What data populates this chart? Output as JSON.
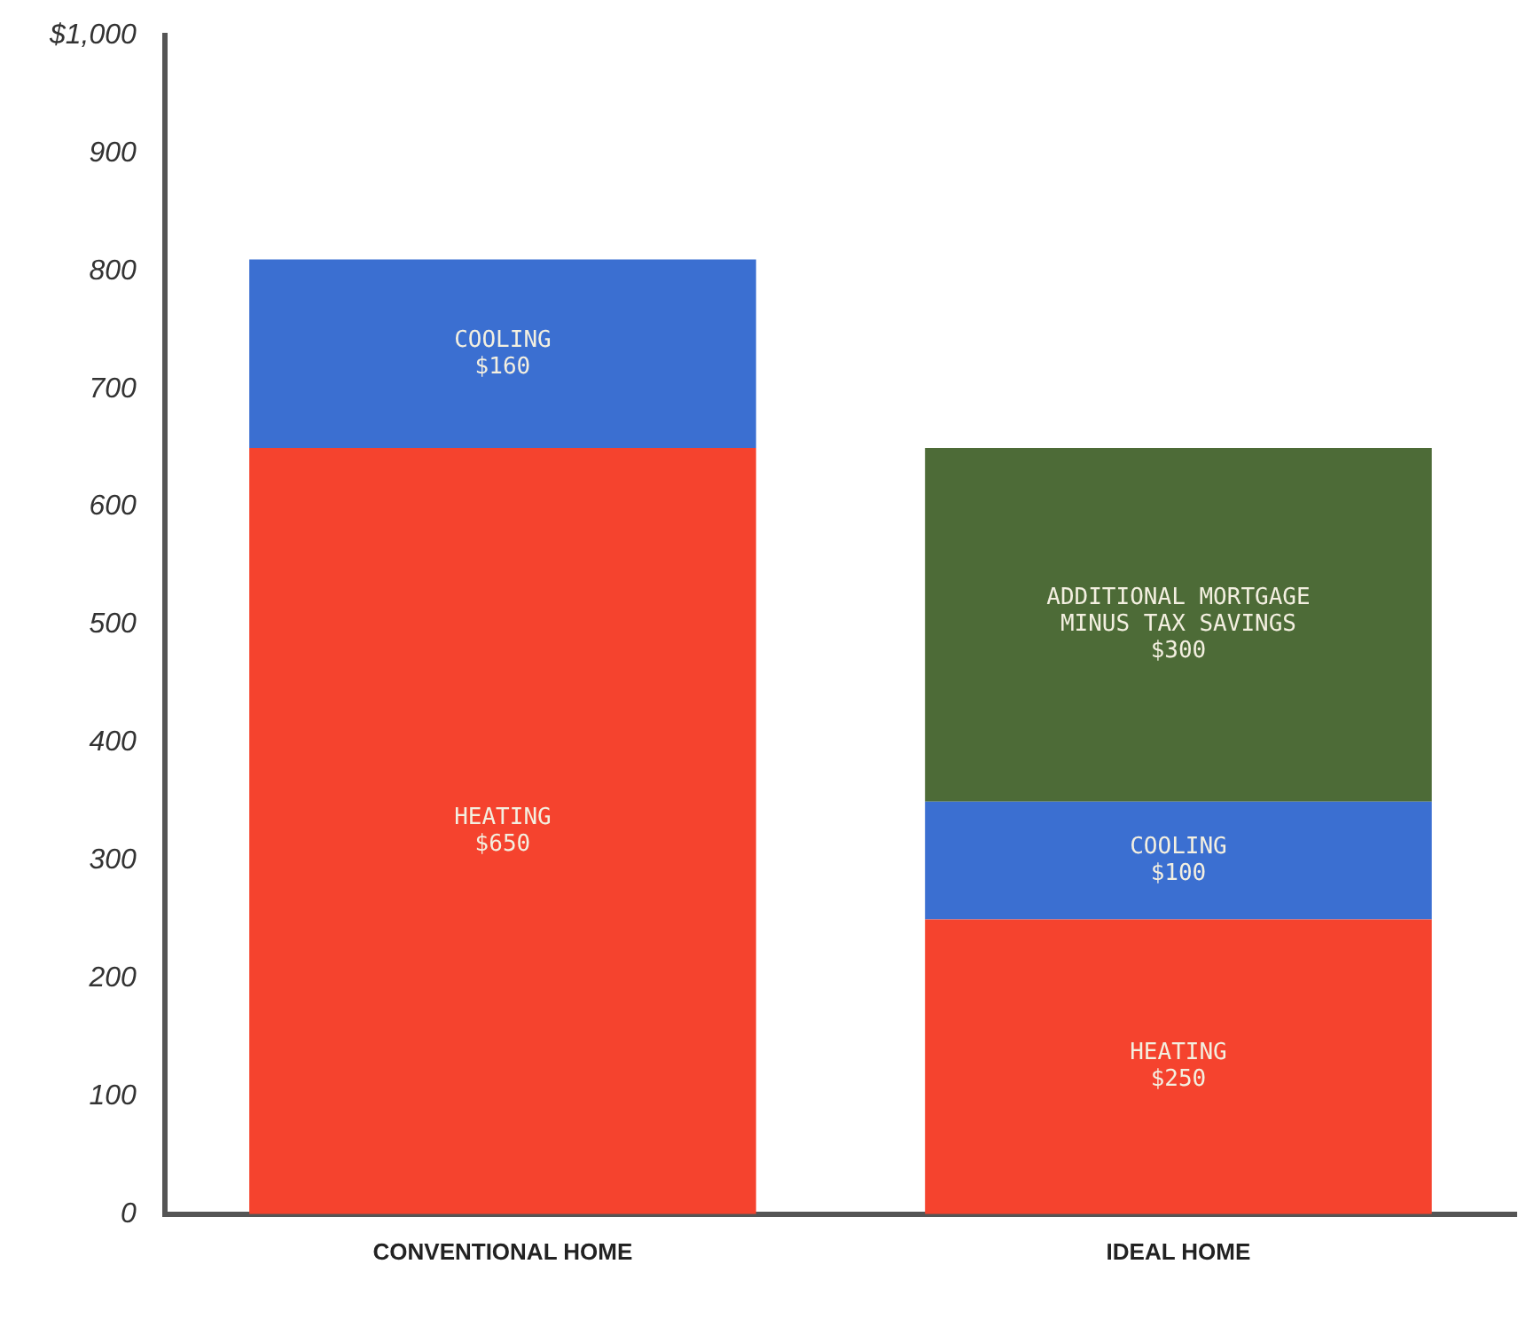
{
  "chart_data": {
    "type": "bar",
    "stacked": true,
    "categories": [
      "CONVENTIONAL HOME",
      "IDEAL HOME"
    ],
    "series": [
      {
        "name": "HEATING",
        "color": "#f5432e",
        "values": [
          650,
          250
        ],
        "value_labels": [
          "$650",
          "$250"
        ]
      },
      {
        "name": "COOLING",
        "color": "#3b6fd1",
        "values": [
          160,
          100
        ],
        "value_labels": [
          "$160",
          "$100"
        ]
      },
      {
        "name": "ADDITIONAL MORTGAGE MINUS TAX SAVINGS",
        "color": "#4d6b37",
        "values": [
          null,
          300
        ],
        "value_labels": [
          null,
          "$300"
        ]
      }
    ],
    "ylim": [
      0,
      1000
    ],
    "yticks": [
      0,
      100,
      200,
      300,
      400,
      500,
      600,
      700,
      800,
      900,
      {
        "value": 1000,
        "label": "$1,000"
      }
    ],
    "grid": false,
    "legend": false
  }
}
